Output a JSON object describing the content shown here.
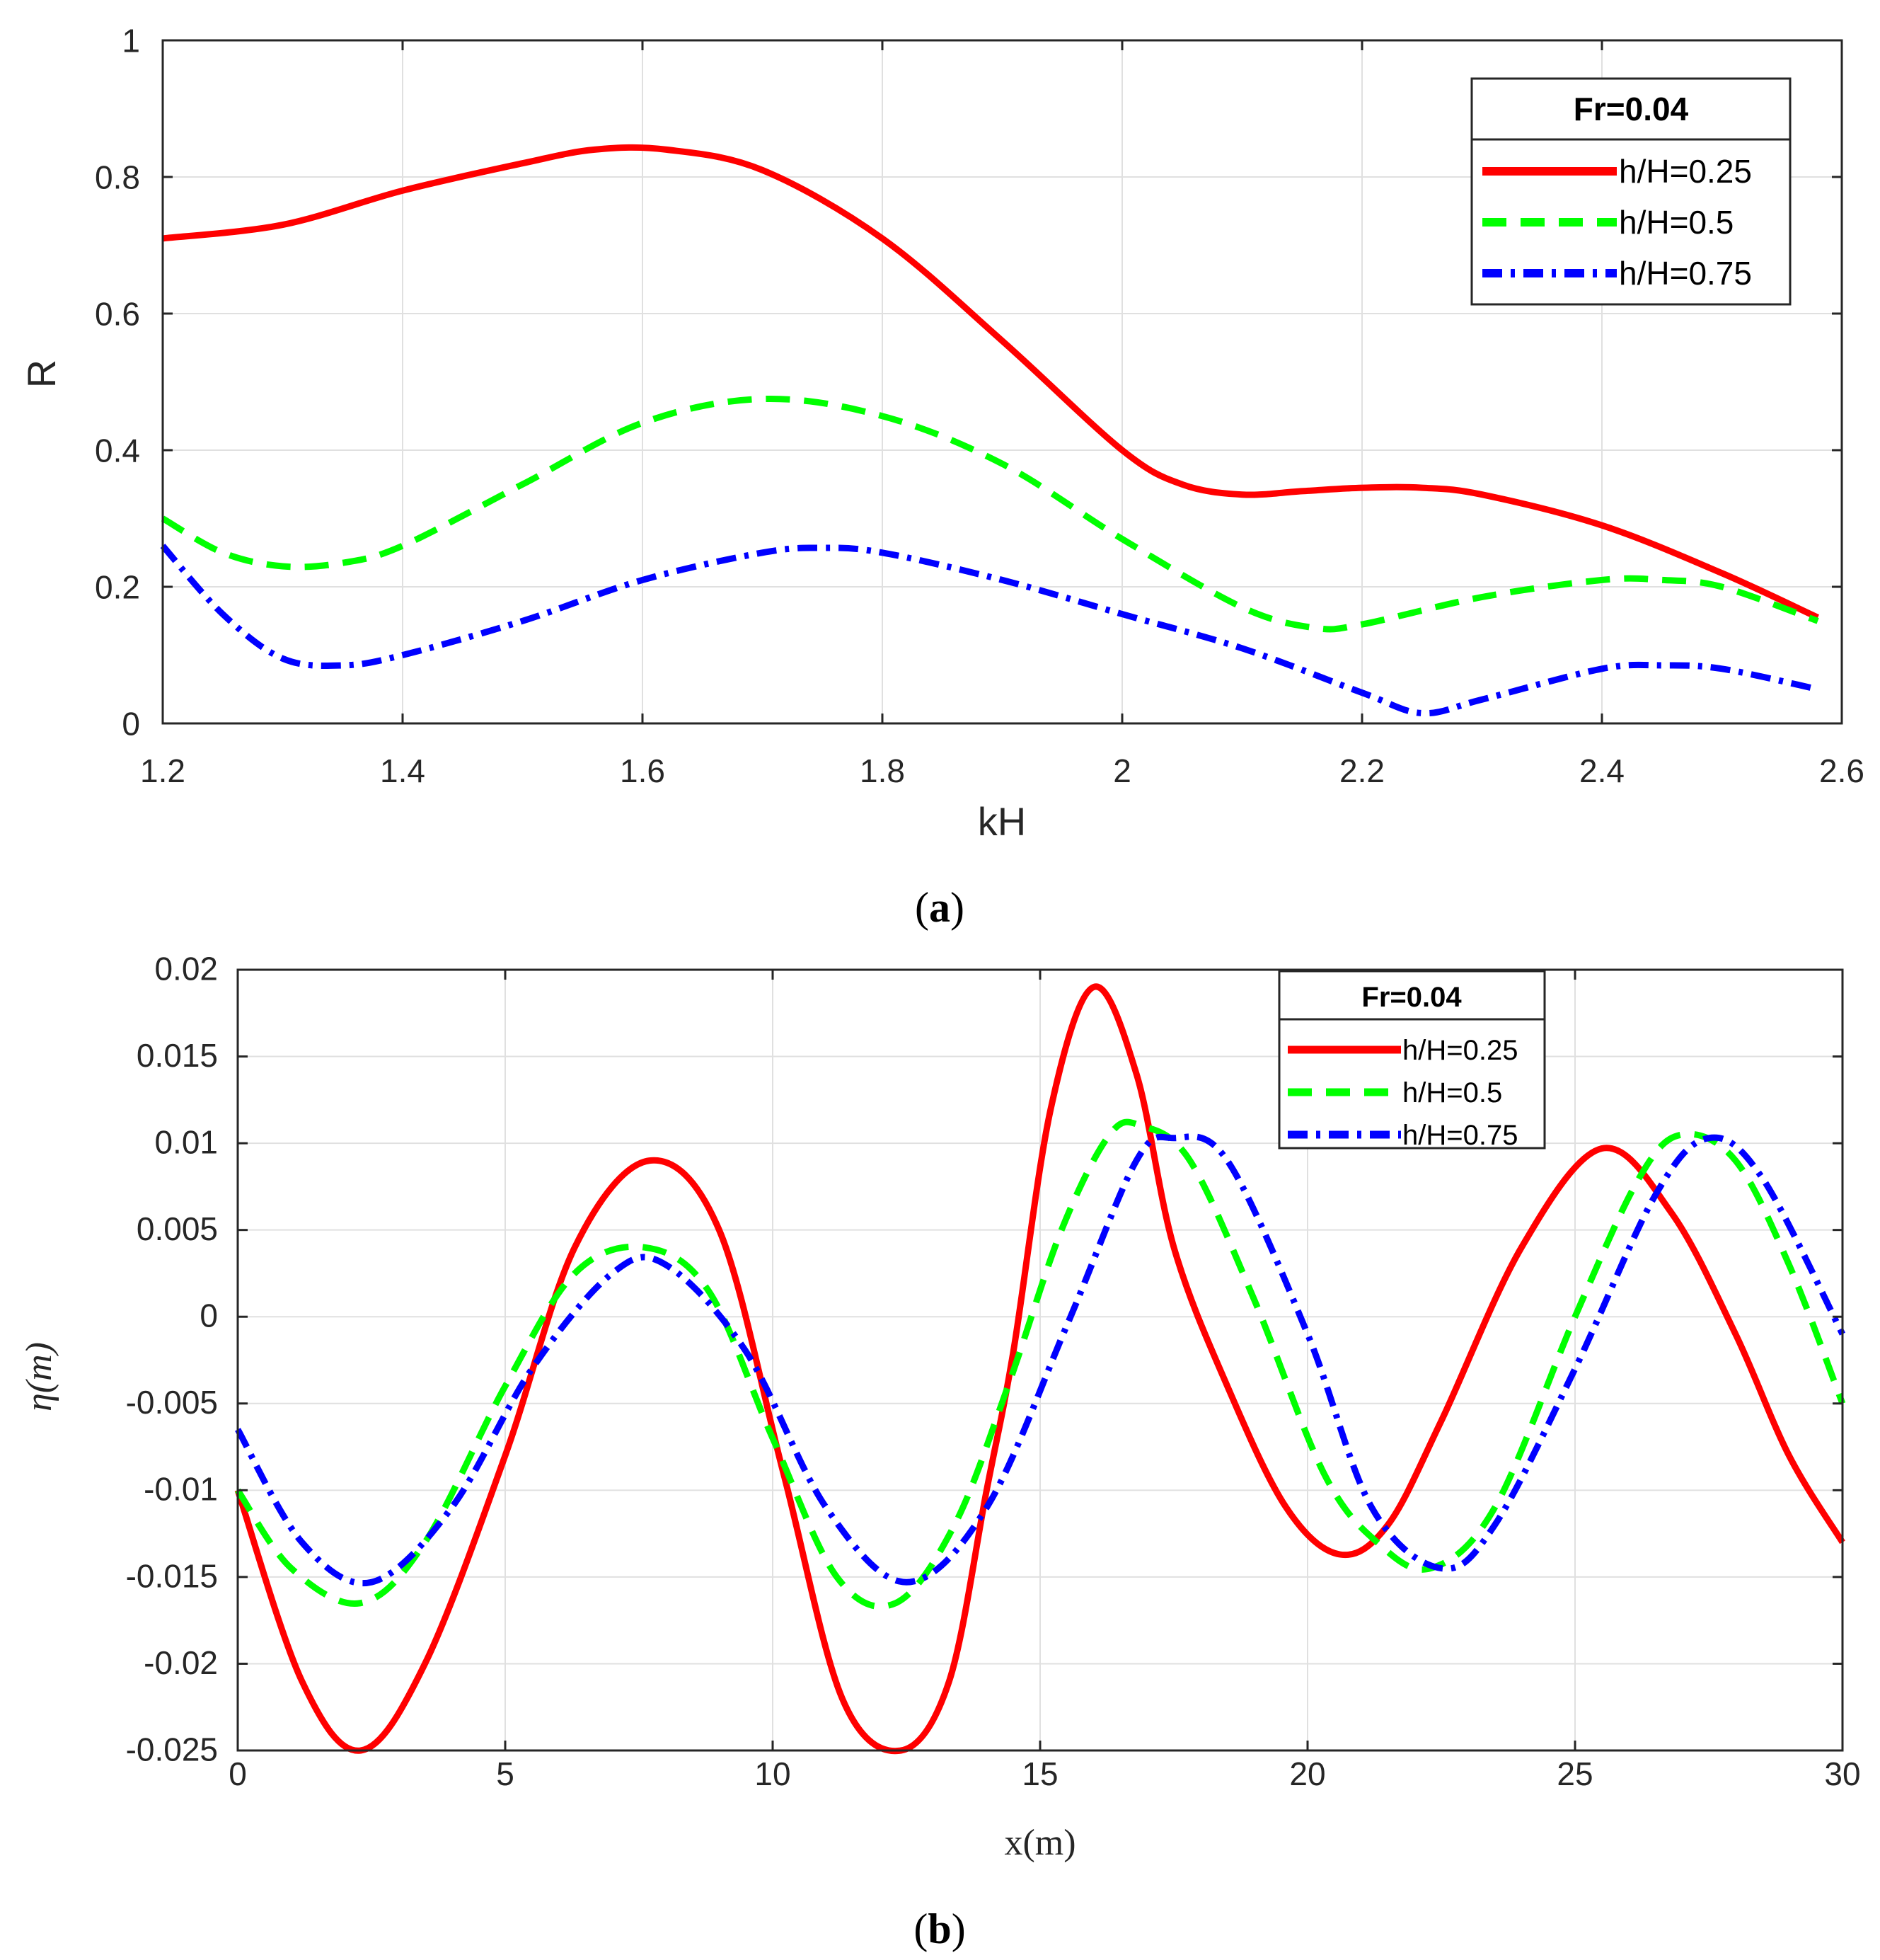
{
  "colors": {
    "red": "#ff0000",
    "green": "#00ff00",
    "blue": "#0000ff",
    "grid": "#e0e0e0",
    "axis": "#262626"
  },
  "captions": {
    "a_open": "(",
    "a_letter": "a",
    "a_close": ")",
    "b_open": "(",
    "b_letter": "b",
    "b_close": ")"
  },
  "chart_data": [
    {
      "id": "a",
      "type": "line",
      "title": "",
      "xlabel": "kH",
      "ylabel": "R",
      "xlim": [
        1.2,
        2.6
      ],
      "ylim": [
        0,
        1
      ],
      "grid": true,
      "legend_position": "top-right",
      "xticks": [
        1.2,
        1.4,
        1.6,
        1.8,
        2,
        2.2,
        2.4,
        2.6
      ],
      "xtick_labels": [
        "1.2",
        "1.4",
        "1.6",
        "1.8",
        "2",
        "2.2",
        "2.4",
        "2.6"
      ],
      "yticks": [
        0,
        0.2,
        0.4,
        0.6,
        0.8,
        1
      ],
      "ytick_labels": [
        "0",
        "0.2",
        "0.4",
        "0.6",
        "0.8",
        "1"
      ],
      "legend_title": "Fr=0.04",
      "series": [
        {
          "name": "h/H=0.25",
          "color": "#ff0000",
          "style": "solid",
          "x": [
            1.2,
            1.3,
            1.4,
            1.5,
            1.56,
            1.62,
            1.7,
            1.8,
            1.9,
            2.0,
            2.05,
            2.1,
            2.15,
            2.2,
            2.25,
            2.3,
            2.4,
            2.5,
            2.58
          ],
          "y": [
            0.71,
            0.73,
            0.78,
            0.82,
            0.84,
            0.84,
            0.81,
            0.71,
            0.56,
            0.4,
            0.35,
            0.335,
            0.34,
            0.345,
            0.345,
            0.335,
            0.29,
            0.22,
            0.155
          ]
        },
        {
          "name": "h/H=0.5",
          "color": "#00ff00",
          "style": "dashed",
          "x": [
            1.2,
            1.25,
            1.3,
            1.35,
            1.4,
            1.5,
            1.6,
            1.7,
            1.8,
            1.9,
            2.0,
            2.1,
            2.16,
            2.2,
            2.3,
            2.4,
            2.45,
            2.5,
            2.58
          ],
          "y": [
            0.3,
            0.25,
            0.23,
            0.235,
            0.26,
            0.35,
            0.44,
            0.475,
            0.45,
            0.38,
            0.27,
            0.17,
            0.14,
            0.145,
            0.185,
            0.21,
            0.21,
            0.2,
            0.15
          ]
        },
        {
          "name": "h/H=0.75",
          "color": "#0000ff",
          "style": "dashdot",
          "x": [
            1.2,
            1.25,
            1.3,
            1.35,
            1.4,
            1.5,
            1.6,
            1.7,
            1.75,
            1.8,
            1.9,
            2.0,
            2.1,
            2.2,
            2.25,
            2.3,
            2.4,
            2.45,
            2.5,
            2.58
          ],
          "y": [
            0.26,
            0.16,
            0.095,
            0.085,
            0.1,
            0.15,
            0.21,
            0.25,
            0.257,
            0.25,
            0.21,
            0.16,
            0.11,
            0.045,
            0.015,
            0.035,
            0.08,
            0.085,
            0.08,
            0.05
          ]
        }
      ]
    },
    {
      "id": "b",
      "type": "line",
      "title": "",
      "xlabel": "x(m)",
      "ylabel": "η(m)",
      "xlim": [
        0,
        30
      ],
      "ylim": [
        -0.025,
        0.02
      ],
      "grid": true,
      "legend_position": "top-right",
      "xticks": [
        0,
        5,
        10,
        15,
        20,
        25,
        30
      ],
      "xtick_labels": [
        "0",
        "5",
        "10",
        "15",
        "20",
        "25",
        "30"
      ],
      "yticks": [
        -0.025,
        -0.02,
        -0.015,
        -0.01,
        -0.005,
        0,
        0.005,
        0.01,
        0.015,
        0.02
      ],
      "ytick_labels": [
        "-0.025",
        "-0.02",
        "-0.015",
        "-0.01",
        "-0.005",
        "0",
        "0.005",
        "0.01",
        "0.015",
        "0.02"
      ],
      "legend_title": "Fr=0.04",
      "series": [
        {
          "name": "h/H=0.25",
          "color": "#ff0000",
          "style": "solid",
          "x": [
            0,
            1.2,
            2.3,
            3.5,
            5,
            6.3,
            7.7,
            9,
            10.2,
            11.3,
            12.4,
            13.3,
            14,
            14.5,
            15.2,
            16.0,
            16.8,
            17.5,
            18.5,
            19.6,
            20.6,
            21.5,
            22.5,
            24,
            25.5,
            26.8,
            28,
            29,
            30
          ],
          "y": [
            -0.01,
            -0.021,
            -0.025,
            -0.02,
            -0.008,
            0.004,
            0.009,
            0.005,
            -0.009,
            -0.022,
            -0.025,
            -0.021,
            -0.01,
            -0.002,
            0.012,
            0.019,
            0.014,
            0.004,
            -0.004,
            -0.011,
            -0.0137,
            -0.012,
            -0.006,
            0.004,
            0.0097,
            0.006,
            -0.001,
            -0.008,
            -0.013
          ]
        },
        {
          "name": "h/H=0.5",
          "color": "#00ff00",
          "style": "dashed",
          "x": [
            0,
            1,
            2.3,
            3.5,
            5,
            6.3,
            7.6,
            8.8,
            10,
            11.2,
            12.3,
            13.4,
            14.4,
            15.4,
            16.3,
            16.9,
            17.8,
            19,
            20.3,
            21.3,
            22.3,
            23.5,
            25,
            26.2,
            27,
            28,
            29,
            30
          ],
          "y": [
            -0.01,
            -0.0145,
            -0.0165,
            -0.013,
            -0.004,
            0.0025,
            0.004,
            0.0015,
            -0.007,
            -0.015,
            -0.0165,
            -0.012,
            -0.004,
            0.005,
            0.0105,
            0.011,
            0.009,
            0.001,
            -0.009,
            -0.013,
            -0.0145,
            -0.011,
            0.0,
            0.008,
            0.0105,
            0.009,
            0.003,
            -0.005
          ]
        },
        {
          "name": "h/H=0.75",
          "color": "#0000ff",
          "style": "dashdot",
          "x": [
            0,
            1.2,
            2.5,
            4,
            5.5,
            7,
            8,
            9.5,
            11,
            12.5,
            14,
            15.5,
            16.8,
            17.5,
            18.5,
            20,
            21.2,
            22.5,
            23.5,
            25,
            26.5,
            27.5,
            28.5,
            30
          ],
          "y": [
            -0.0065,
            -0.013,
            -0.0153,
            -0.011,
            -0.003,
            0.0025,
            0.003,
            -0.002,
            -0.011,
            -0.0153,
            -0.011,
            -0.0005,
            0.009,
            0.0103,
            0.009,
            -0.001,
            -0.011,
            -0.0145,
            -0.012,
            -0.003,
            0.007,
            0.0103,
            0.008,
            -0.001
          ]
        }
      ]
    }
  ]
}
